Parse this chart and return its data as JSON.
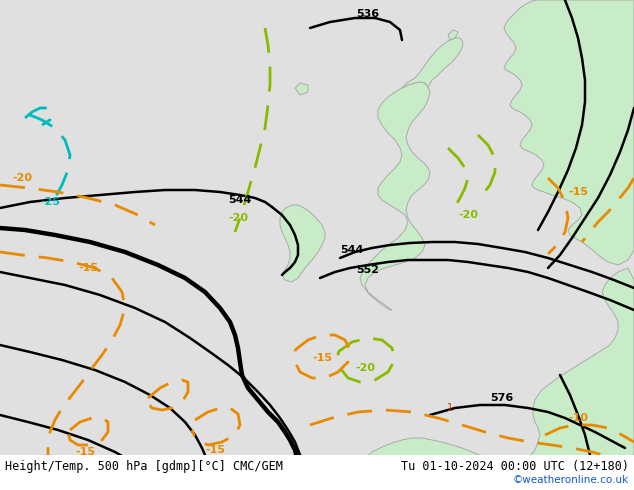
{
  "title_left": "Height/Temp. 500 hPa [gdmp][°C] CMC/GEM",
  "title_right": "Tu 01-10-2024 00:00 UTC (12+180)",
  "credit": "©weatheronline.co.uk",
  "bg_color": "#e0e0e0",
  "land_color": "#c8ecc8",
  "coast_color": "#aaaaaa",
  "black_lw": 1.8,
  "black_thick_lw": 3.2,
  "temp_lw": 2.0,
  "font_label": 8,
  "font_title": 8.5,
  "font_credit": 7.5,
  "credit_color": "#1155cc"
}
